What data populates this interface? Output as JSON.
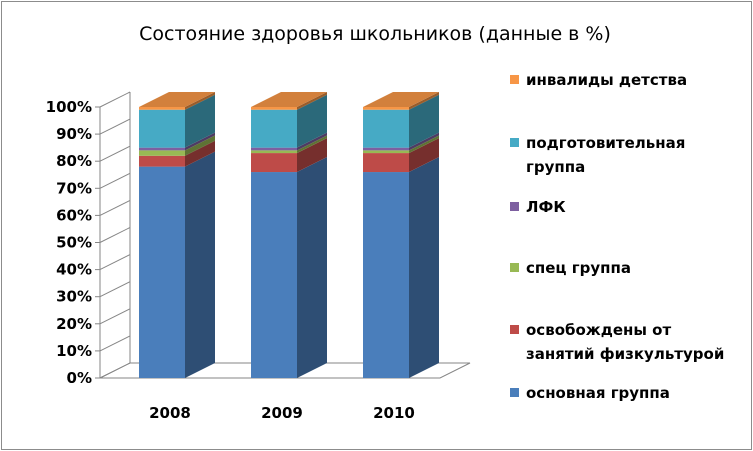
{
  "chart_data": {
    "type": "bar",
    "stacked": true,
    "three_d": true,
    "title": "Состояние здоровья школьников (данные в %)",
    "categories": [
      "2008",
      "2009",
      "2010"
    ],
    "y_ticks": [
      "0%",
      "10%",
      "20%",
      "30%",
      "40%",
      "50%",
      "60%",
      "70%",
      "80%",
      "90%",
      "100%"
    ],
    "ylim": [
      0,
      100
    ],
    "grid": false,
    "legend_position": "right",
    "series": [
      {
        "name": "основная группа",
        "color": "#4a7ebb",
        "values": [
          78,
          76,
          76
        ]
      },
      {
        "name": "освобождены от занятий физкультурой",
        "color": "#be4b48",
        "values": [
          4,
          7,
          7
        ]
      },
      {
        "name": "спец группа",
        "color": "#98b954",
        "values": [
          2,
          1,
          1
        ]
      },
      {
        "name": "ЛФК",
        "color": "#7d5fa0",
        "values": [
          1,
          1,
          1
        ]
      },
      {
        "name": "подготовительная группа",
        "color": "#46aac5",
        "values": [
          14,
          14,
          14
        ]
      },
      {
        "name": "инвалиды детства",
        "color": "#f79646",
        "values": [
          1,
          1,
          1
        ]
      }
    ]
  },
  "legend": [
    {
      "lines": [
        "инвалиды детства"
      ],
      "color": "#f79646"
    },
    {
      "lines": [
        "подготовительная",
        "группа"
      ],
      "color": "#46aac5"
    },
    {
      "lines": [
        "ЛФК"
      ],
      "color": "#7d5fa0"
    },
    {
      "lines": [
        "спец группа"
      ],
      "color": "#98b954"
    },
    {
      "lines": [
        "освобождены от",
        "занятий физкультурой"
      ],
      "color": "#be4b48"
    },
    {
      "lines": [
        "основная группа"
      ],
      "color": "#4a7ebb"
    }
  ]
}
